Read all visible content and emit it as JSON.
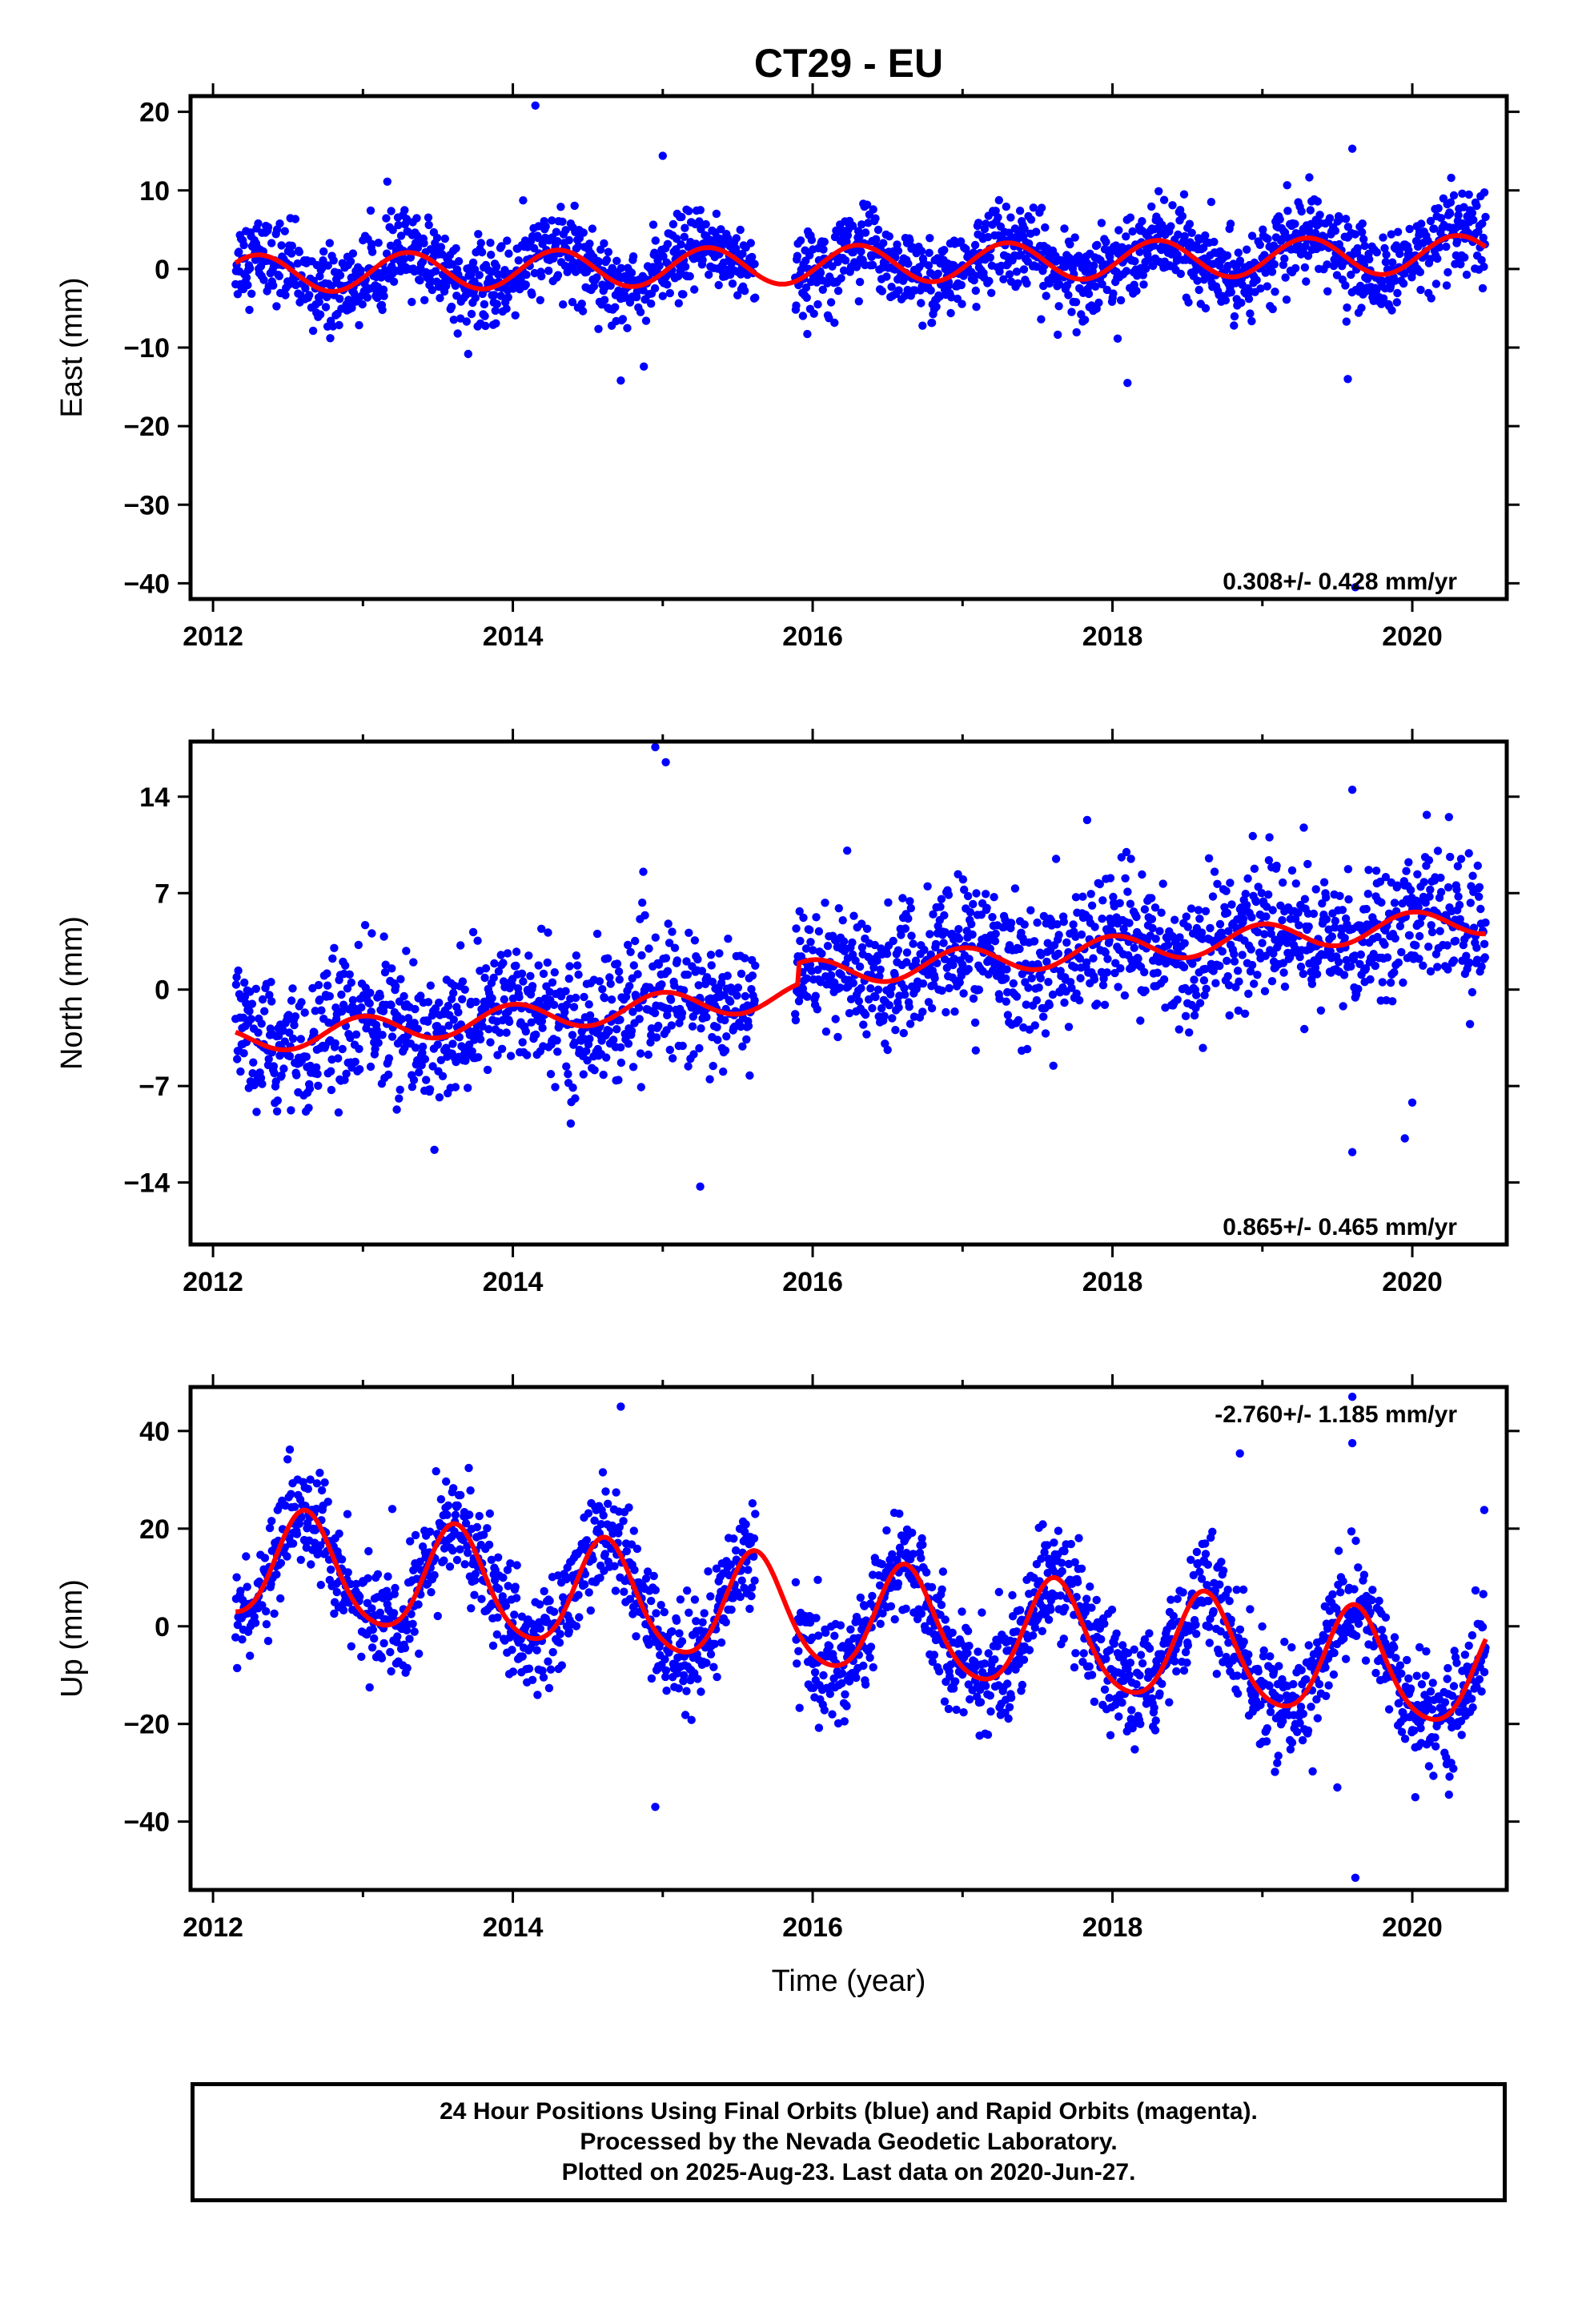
{
  "chart_data": [
    {
      "type": "scatter",
      "title": "CT29 - EU",
      "ylabel": "East (mm)",
      "xlabel": "",
      "xlim": [
        2011.85,
        2020.63
      ],
      "ylim": [
        -42,
        22
      ],
      "xticks": [
        "2012",
        "2014",
        "2016",
        "2018",
        "2020"
      ],
      "yticks": [
        20,
        10,
        0,
        -10,
        -20,
        -30,
        -40
      ],
      "rate_text": "0.308+/- 0.428 mm/yr",
      "rate_position": "bottom-right",
      "point_color": "#0000ff",
      "fit_color": "#ff0000",
      "data_start": 2012.15,
      "data_end": 2020.49,
      "data_gap": [
        2015.62,
        2015.88
      ],
      "trend": {
        "offset_at_2012": -0.7,
        "rate_mm_per_yr": 0.308
      },
      "annual": {
        "amplitude": 2.4,
        "peak_year_fraction": 0.3
      },
      "scatter_sd": 2.6,
      "outliers": [
        [
          2014.15,
          20.8
        ],
        [
          2014.72,
          -14.2
        ],
        [
          2015.0,
          14.4
        ],
        [
          2018.1,
          -14.5
        ],
        [
          2019.6,
          15.3
        ],
        [
          2019.57,
          -14.0
        ],
        [
          2019.62,
          -40.5
        ]
      ]
    },
    {
      "type": "scatter",
      "title": "",
      "ylabel": "North (mm)",
      "xlabel": "",
      "xlim": [
        2011.85,
        2020.63
      ],
      "ylim": [
        -18.5,
        18
      ],
      "xticks": [
        "2012",
        "2014",
        "2016",
        "2018",
        "2020"
      ],
      "yticks": [
        14,
        7,
        0,
        -7,
        -14
      ],
      "rate_text": "0.865+/- 0.465 mm/yr",
      "rate_position": "bottom-right",
      "point_color": "#0000ff",
      "fit_color": "#ff0000",
      "data_start": 2012.15,
      "data_end": 2020.49,
      "data_gap": [
        2015.62,
        2015.88
      ],
      "trend": {
        "offset_at_2012": -3.8,
        "rate_mm_per_yr": 0.865
      },
      "annual": {
        "amplitude": 1.0,
        "peak_year_fraction": 0.0
      },
      "steps": [
        [
          2015.9,
          1.5
        ]
      ],
      "scatter_sd": 2.4,
      "outliers": [
        [
          2014.95,
          17.6
        ],
        [
          2015.02,
          16.5
        ],
        [
          2015.25,
          -14.3
        ],
        [
          2019.6,
          14.5
        ],
        [
          2019.6,
          -11.8
        ],
        [
          2019.95,
          -10.8
        ],
        [
          2020.0,
          -8.2
        ]
      ]
    },
    {
      "type": "scatter",
      "title": "",
      "ylabel": "Up (mm)",
      "xlabel": "Time (year)",
      "xlim": [
        2011.85,
        2020.63
      ],
      "ylim": [
        -54,
        49
      ],
      "xticks": [
        "2012",
        "2014",
        "2016",
        "2018",
        "2020"
      ],
      "yticks": [
        40,
        20,
        0,
        -20,
        -40
      ],
      "rate_text": "-2.760+/- 1.185 mm/yr",
      "rate_position": "top-right",
      "point_color": "#0000ff",
      "fit_color": "#ff0000",
      "data_start": 2012.15,
      "data_end": 2020.49,
      "data_gap": [
        2015.62,
        2015.88
      ],
      "trend": {
        "offset_at_2012": 13.0,
        "rate_mm_per_yr": -2.76
      },
      "annual": {
        "amplitude": 11.0,
        "peak_year_fraction": 0.62
      },
      "semiannual": {
        "amplitude": 1.5,
        "peak_year_fraction": 0.1
      },
      "scatter_sd": 5.5,
      "outliers": [
        [
          2014.72,
          45.0
        ],
        [
          2018.85,
          35.4
        ],
        [
          2019.6,
          47.0
        ],
        [
          2019.6,
          37.5
        ],
        [
          2019.62,
          -51.5
        ],
        [
          2014.95,
          -37.0
        ],
        [
          2020.02,
          -35.0
        ],
        [
          2019.5,
          -33.0
        ],
        [
          2020.48,
          23.8
        ]
      ]
    }
  ],
  "caption": {
    "line1": "24 Hour Positions Using Final Orbits (blue) and Rapid Orbits (magenta).",
    "line2": "Processed by the Nevada Geodetic Laboratory.",
    "line3": "Plotted on 2025-Aug-23. Last data on 2020-Jun-27."
  }
}
